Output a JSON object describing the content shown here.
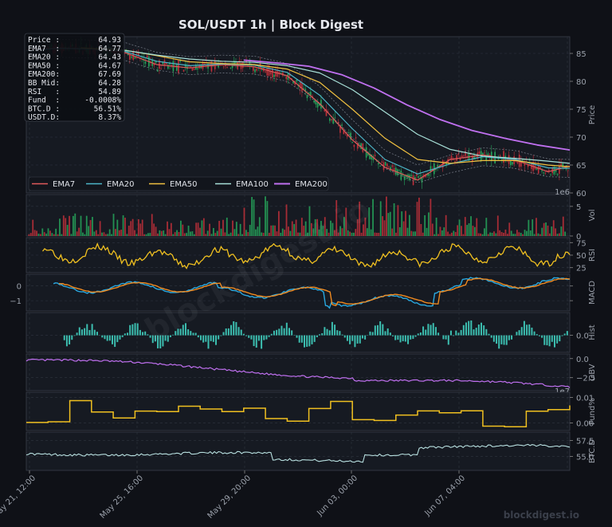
{
  "title": "SOL/USDT  1h  |  Block Digest",
  "watermark": "blockdigest.io",
  "center_watermark": "blockdigest.io",
  "info_box": [
    {
      "label": "Price :",
      "value": "64.93"
    },
    {
      "label": "EMA7  :",
      "value": "64.77"
    },
    {
      "label": "EMA20 :",
      "value": "64.43"
    },
    {
      "label": "EMA50 :",
      "value": "64.67"
    },
    {
      "label": "EMA200:",
      "value": "67.69"
    },
    {
      "label": "BB Mid:",
      "value": "64.28"
    },
    {
      "label": "RSI   :",
      "value": "54.89"
    },
    {
      "label": "Fund  :",
      "value": "-0.0008%"
    },
    {
      "label": "BTC.D :",
      "value": "56.51%"
    },
    {
      "label": "USDT.D:",
      "value": "8.37%"
    }
  ],
  "colors": {
    "background": "#0f1117",
    "panel": "#161a22",
    "grid": "#2f3440",
    "text": "#9aa0aa",
    "ema7": "#e05a5a",
    "ema20": "#4db6c8",
    "ema50": "#f0c040",
    "ema100": "#a8e0d8",
    "ema200": "#c070f0",
    "up": "#26a65b",
    "down": "#c0303a",
    "rsi": "#f0c020",
    "macd": "#29a8e0",
    "signal": "#f08a20",
    "hist": "#40d0c0",
    "obv": "#c070f0",
    "fund": "#f0c020",
    "btcd": "#b8e0e0"
  },
  "chart_data": {
    "type": "line",
    "x_ticks": [
      "May 21, 12:00",
      "May 25, 16:00",
      "May 29, 20:00",
      "Jun 03, 00:00",
      "Jun 07, 04:00"
    ],
    "legend": [
      "EMA7",
      "EMA20",
      "EMA50",
      "EMA100",
      "EMA200"
    ],
    "legend_placement": "bottom-left",
    "grid": true,
    "panels": [
      {
        "ylabel": "Price",
        "yticks": [
          "85",
          "80",
          "75",
          "70",
          "65",
          "60"
        ],
        "ylim": [
          60,
          88
        ],
        "series": [
          {
            "name": "EMA7",
            "x": [
              0,
              0.06,
              0.12,
              0.18,
              0.24,
              0.3,
              0.36,
              0.42,
              0.48,
              0.54,
              0.6,
              0.66,
              0.72,
              0.78,
              0.84,
              0.9,
              0.96,
              1.0
            ],
            "y": [
              85.6,
              86.0,
              85.8,
              85.2,
              83.0,
              82.4,
              83.0,
              82.6,
              81.0,
              76.0,
              69.5,
              64.6,
              62.3,
              66.0,
              66.8,
              65.9,
              63.8,
              64.8
            ]
          },
          {
            "name": "EMA20",
            "x": [
              0,
              0.06,
              0.12,
              0.18,
              0.24,
              0.3,
              0.36,
              0.42,
              0.48,
              0.54,
              0.6,
              0.66,
              0.72,
              0.78,
              0.84,
              0.9,
              0.96,
              1.0
            ],
            "y": [
              85.5,
              85.9,
              85.8,
              85.4,
              83.6,
              82.8,
              83.1,
              82.9,
              81.6,
              77.5,
              71.5,
              66.0,
              63.4,
              65.2,
              66.5,
              66.0,
              64.5,
              64.4
            ]
          },
          {
            "name": "EMA50",
            "x": [
              0.1,
              0.18,
              0.24,
              0.3,
              0.36,
              0.42,
              0.48,
              0.54,
              0.6,
              0.66,
              0.72,
              0.78,
              0.84,
              0.9,
              0.96,
              1.0
            ],
            "y": [
              86.0,
              85.6,
              84.6,
              83.5,
              83.2,
              83.0,
              82.2,
              79.8,
              75.0,
              69.8,
              66.0,
              65.3,
              65.8,
              65.8,
              65.0,
              64.7
            ]
          },
          {
            "name": "EMA100",
            "x": [
              0.15,
              0.24,
              0.3,
              0.36,
              0.42,
              0.48,
              0.54,
              0.6,
              0.66,
              0.72,
              0.78,
              0.84,
              0.9,
              0.96,
              1.0
            ],
            "y": [
              86.0,
              84.7,
              84.0,
              83.6,
              83.4,
              82.8,
              81.5,
              78.5,
              74.5,
              70.5,
              67.8,
              66.6,
              66.2,
              65.7,
              65.3
            ]
          },
          {
            "name": "EMA200",
            "x": [
              0.4,
              0.46,
              0.52,
              0.58,
              0.64,
              0.7,
              0.76,
              0.82,
              0.88,
              0.94,
              1.0
            ],
            "y": [
              83.8,
              83.3,
              82.7,
              81.2,
              78.8,
              75.8,
              73.2,
              71.2,
              69.8,
              68.6,
              67.7
            ]
          }
        ]
      },
      {
        "ylabel": "Vol",
        "yticks": [
          "5",
          "0"
        ],
        "ylim": [
          0,
          7
        ],
        "offset_label": "1e6"
      },
      {
        "ylabel": "RSI",
        "yticks": [
          "75",
          "50",
          "25"
        ],
        "ylim": [
          15,
          85
        ]
      },
      {
        "ylabel": "MACD",
        "yticks": [
          "0",
          "−1"
        ],
        "ylim": [
          -1.7,
          0.8
        ]
      },
      {
        "ylabel": "Hist",
        "yticks": [
          "0.0"
        ],
        "ylim": [
          -0.6,
          0.8
        ]
      },
      {
        "ylabel": "OBV",
        "yticks": [
          "0.0",
          "−2.5"
        ],
        "ylim": [
          -4.2,
          0.6
        ],
        "offset_label": "1e7"
      },
      {
        "ylabel": "Fund%",
        "yticks": [
          "0.01",
          "0.00"
        ],
        "ylim": [
          -0.003,
          0.012
        ]
      },
      {
        "ylabel": "BTC.D",
        "yticks": [
          "57.5",
          "55.0"
        ],
        "ylim": [
          52.8,
          58.8
        ]
      }
    ]
  }
}
